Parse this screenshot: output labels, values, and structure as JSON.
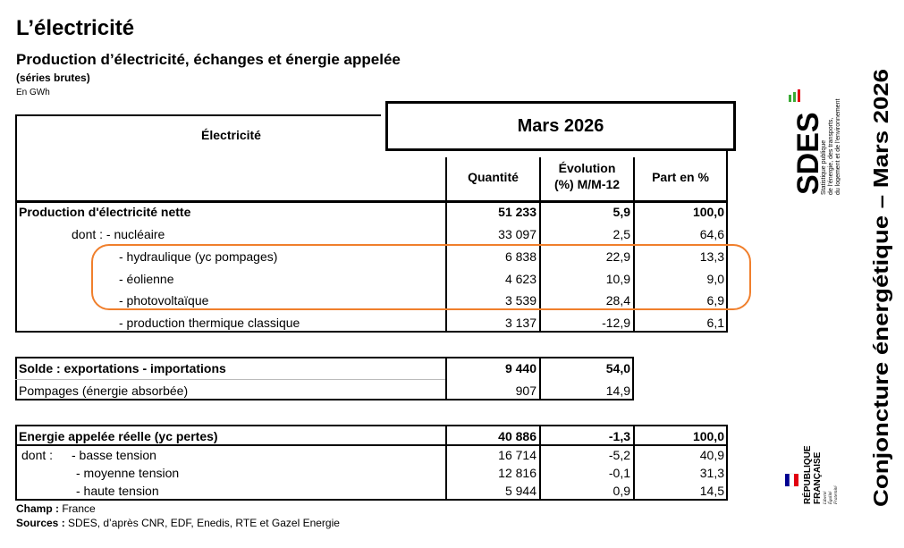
{
  "header": {
    "title": "L’électricité",
    "subtitle": "Production d’électricité, échanges et énergie appelée",
    "series_note": "(séries brutes)",
    "unit": "En GWh"
  },
  "table": {
    "row_header": "Électricité",
    "period": "Mars 2026",
    "col_quantity": "Quantité",
    "col_evolution_line1": "Évolution",
    "col_evolution_line2": "(%) M/M-12",
    "col_share": "Part en %",
    "production": [
      {
        "label": "Production d'électricité nette",
        "quantity": "51 233",
        "evolution": "5,9",
        "share": "100,0"
      },
      {
        "label": "dont : - nucléaire",
        "quantity": "33 097",
        "evolution": "2,5",
        "share": "64,6"
      },
      {
        "label": "- hydraulique (yc pompages)",
        "quantity": "6 838",
        "evolution": "22,9",
        "share": "13,3"
      },
      {
        "label": "- éolienne",
        "quantity": "4 623",
        "evolution": "10,9",
        "share": "9,0"
      },
      {
        "label": "- photovoltaïque",
        "quantity": "3 539",
        "evolution": "28,4",
        "share": "6,9"
      },
      {
        "label": "- production thermique classique",
        "quantity": "3 137",
        "evolution": "-12,9",
        "share": "6,1"
      }
    ],
    "exchanges": [
      {
        "label": "Solde : exportations - importations",
        "quantity": "9 440",
        "evolution": "54,0"
      },
      {
        "label": "Pompages (énergie absorbée)",
        "quantity": "907",
        "evolution": "14,9"
      }
    ],
    "demand": [
      {
        "label": "Energie appelée réelle (yc pertes)",
        "quantity": "40 886",
        "evolution": "-1,3",
        "share": "100,0"
      },
      {
        "label": "dont :",
        "sublabel": "- basse tension",
        "quantity": "16 714",
        "evolution": "-5,2",
        "share": "40,9"
      },
      {
        "label": "- moyenne tension",
        "quantity": "12 816",
        "evolution": "-0,1",
        "share": "31,3"
      },
      {
        "label": "- haute tension",
        "quantity": "5 944",
        "evolution": "0,9",
        "share": "14,5"
      }
    ]
  },
  "footer": {
    "champ_label": "Champ :",
    "champ_value": "France",
    "sources_label": "Sources :",
    "sources_value": "SDES, d’après CNR, EDF, Enedis, RTE et Gazel Energie"
  },
  "sidebar": {
    "sdes_logo_text": "SDES",
    "sdes_tagline_1": "Statistique publique",
    "sdes_tagline_2": "de l’énergie, des transports,",
    "sdes_tagline_3": "du logement et de l’environnement",
    "rf_line1": "RÉPUBLIQUE",
    "rf_line2": "FRANÇAISE",
    "rf_motto_1": "Liberté",
    "rf_motto_2": "Égalité",
    "rf_motto_3": "Fraternité",
    "vertical_title": "Conjoncture énergétique – Mars 2026"
  },
  "colors": {
    "highlight": "#f07f2c",
    "sdes_green": "#3aaa35",
    "sdes_red": "#e1000f",
    "rf_blue": "#000091",
    "rf_red": "#e1000f"
  }
}
